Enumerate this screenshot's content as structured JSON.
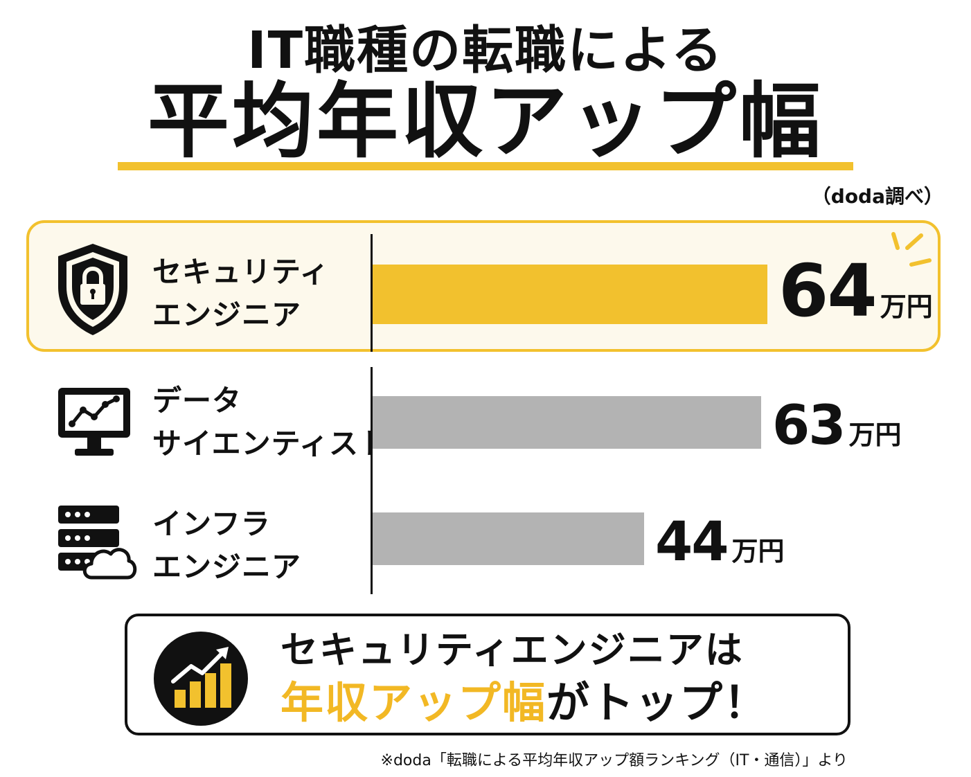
{
  "header": {
    "title_line1": "IT職種の転職による",
    "title_line2": "平均年収アップ幅",
    "source_note": "（doda調べ）"
  },
  "colors": {
    "accent": "#f2c12e",
    "highlight_bg": "#fdf9ec",
    "bar_gray": "#b3b3b3",
    "text": "#111111"
  },
  "chart_data": {
    "type": "bar",
    "orientation": "horizontal",
    "categories": [
      "セキュリティエンジニア",
      "データサイエンティスト",
      "インフラエンジニア"
    ],
    "values": [
      64,
      63,
      44
    ],
    "unit": "万円",
    "highlight_index": 0
  },
  "rows": [
    {
      "label_line1": "セキュリティ",
      "label_line2": "エンジニア",
      "value": "64",
      "unit": "万円",
      "icon": "shield-lock-icon"
    },
    {
      "label_line1": "データ",
      "label_line2": "サイエンティスト",
      "value": "63",
      "unit": "万円",
      "icon": "monitor-chart-icon"
    },
    {
      "label_line1": "インフラ",
      "label_line2": "エンジニア",
      "value": "44",
      "unit": "万円",
      "icon": "server-cloud-icon"
    }
  ],
  "summary": {
    "line1": "セキュリティエンジニアは",
    "line2_highlight": "年収アップ幅",
    "line2_rest": "がトップ！",
    "icon": "growth-chart-icon"
  },
  "footnote": "※doda「転職による平均年収アップ額ランキング（IT・通信）」より"
}
